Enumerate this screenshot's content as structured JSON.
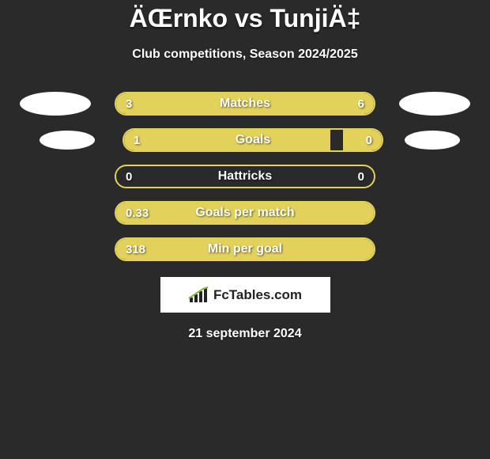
{
  "title": "ÄŒrnko vs TunjiÄ‡",
  "subtitle": "Club competitions, Season 2024/2025",
  "logo_text": "FcTables.com",
  "date": "21 september 2024",
  "colors": {
    "background": "#2a2a2a",
    "bar_fill": "#e2d15a",
    "bar_border": "#e2d15a",
    "text": "#ffffff",
    "avatar": "#ffffff",
    "logo_bg": "#ffffff",
    "logo_text": "#222222"
  },
  "rows": [
    {
      "label": "Matches",
      "left_val": "3",
      "right_val": "6",
      "left_pct": 33,
      "right_pct": 67,
      "show_avatars": true,
      "avatar_size": "large"
    },
    {
      "label": "Goals",
      "left_val": "1",
      "right_val": "0",
      "left_pct": 80,
      "right_pct": 15,
      "show_avatars": true,
      "avatar_size": "small"
    },
    {
      "label": "Hattricks",
      "left_val": "0",
      "right_val": "0",
      "left_pct": 0,
      "right_pct": 0,
      "show_avatars": false
    },
    {
      "label": "Goals per match",
      "left_val": "0.33",
      "right_val": "",
      "left_pct": 100,
      "right_pct": 0,
      "show_avatars": false,
      "full": true
    },
    {
      "label": "Min per goal",
      "left_val": "318",
      "right_val": "",
      "left_pct": 100,
      "right_pct": 0,
      "show_avatars": false,
      "full": true
    }
  ]
}
